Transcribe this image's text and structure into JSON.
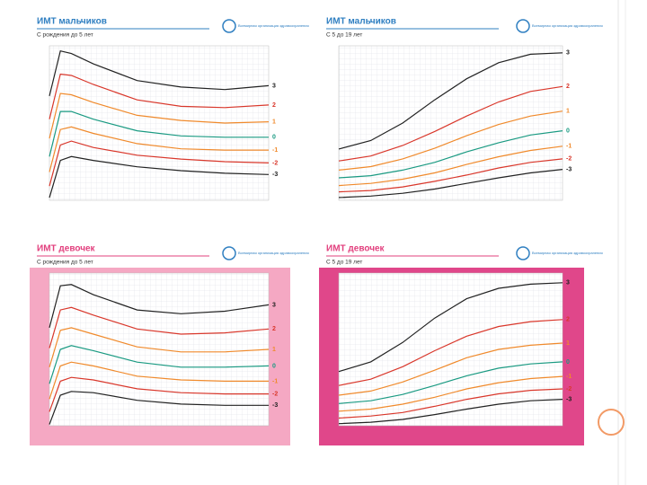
{
  "chart_data": [
    {
      "type": "line",
      "title": "ИМТ мальчиков",
      "subtitle": "С рождения до 5 лет",
      "org": "Всемирная организация здравоохранения",
      "title_color": "#2f7fc1",
      "background": "#ffffff",
      "x": [
        0,
        0.25,
        0.5,
        1,
        2,
        3,
        4,
        5
      ],
      "xlim": [
        0,
        5
      ],
      "ylim": [
        10,
        22
      ],
      "grid": true,
      "series": [
        {
          "name": "3",
          "color": "#222222",
          "values": [
            18.1,
            21.6,
            21.4,
            20.6,
            19.3,
            18.8,
            18.6,
            18.9
          ]
        },
        {
          "name": "2",
          "color": "#d9372b",
          "values": [
            16.3,
            19.8,
            19.7,
            19.0,
            17.8,
            17.3,
            17.2,
            17.4
          ]
        },
        {
          "name": "1",
          "color": "#f08a2c",
          "values": [
            14.8,
            18.3,
            18.2,
            17.6,
            16.6,
            16.2,
            16.0,
            16.1
          ]
        },
        {
          "name": "0",
          "color": "#1a9a82",
          "values": [
            13.4,
            16.9,
            16.9,
            16.3,
            15.4,
            15.0,
            14.9,
            14.9
          ]
        },
        {
          "name": "-1",
          "color": "#f08a2c",
          "values": [
            12.2,
            15.5,
            15.7,
            15.2,
            14.4,
            14.0,
            13.9,
            13.9
          ]
        },
        {
          "name": "-2",
          "color": "#d9372b",
          "values": [
            11.1,
            14.3,
            14.6,
            14.1,
            13.5,
            13.2,
            13.0,
            12.9
          ]
        },
        {
          "name": "-3",
          "color": "#222222",
          "values": [
            10.2,
            13.1,
            13.4,
            13.1,
            12.6,
            12.3,
            12.1,
            12.0
          ]
        }
      ]
    },
    {
      "type": "line",
      "title": "ИМТ мальчиков",
      "subtitle": "С 5 до 19 лет",
      "org": "Всемирная организация здравоохранения",
      "title_color": "#2f7fc1",
      "background": "#ffffff",
      "x": [
        5,
        7,
        9,
        11,
        13,
        15,
        17,
        19
      ],
      "xlim": [
        5,
        19
      ],
      "ylim": [
        12,
        34
      ],
      "grid": true,
      "series": [
        {
          "name": "3",
          "color": "#222222",
          "values": [
            19.3,
            20.5,
            23.0,
            26.3,
            29.3,
            31.6,
            32.8,
            33.0
          ]
        },
        {
          "name": "2",
          "color": "#d9372b",
          "values": [
            17.6,
            18.3,
            19.8,
            21.8,
            24.0,
            26.0,
            27.5,
            28.2
          ]
        },
        {
          "name": "1",
          "color": "#f08a2c",
          "values": [
            16.3,
            16.8,
            17.9,
            19.4,
            21.2,
            22.8,
            24.0,
            24.7
          ]
        },
        {
          "name": "0",
          "color": "#1a9a82",
          "values": [
            15.2,
            15.5,
            16.3,
            17.4,
            18.9,
            20.2,
            21.3,
            21.9
          ]
        },
        {
          "name": "-1",
          "color": "#f08a2c",
          "values": [
            14.1,
            14.4,
            15.0,
            15.9,
            17.1,
            18.2,
            19.1,
            19.7
          ]
        },
        {
          "name": "-2",
          "color": "#d9372b",
          "values": [
            13.2,
            13.4,
            13.9,
            14.7,
            15.6,
            16.6,
            17.4,
            17.9
          ]
        },
        {
          "name": "-3",
          "color": "#222222",
          "values": [
            12.4,
            12.6,
            13.0,
            13.6,
            14.4,
            15.2,
            15.9,
            16.4
          ]
        }
      ]
    },
    {
      "type": "line",
      "title": "ИМТ девочек",
      "subtitle": "С рождения до 5 лет",
      "org": "Всемирная организация здравоохранения",
      "title_color": "#e2407e",
      "background": "#f5a8c3",
      "x": [
        0,
        0.25,
        0.5,
        1,
        2,
        3,
        4,
        5
      ],
      "xlim": [
        0,
        5
      ],
      "ylim": [
        10,
        22
      ],
      "grid": true,
      "series": [
        {
          "name": "3",
          "color": "#222222",
          "values": [
            17.7,
            21.0,
            21.1,
            20.3,
            19.1,
            18.8,
            19.0,
            19.5
          ]
        },
        {
          "name": "2",
          "color": "#d9372b",
          "values": [
            16.1,
            19.1,
            19.3,
            18.7,
            17.6,
            17.2,
            17.3,
            17.6
          ]
        },
        {
          "name": "1",
          "color": "#f08a2c",
          "values": [
            14.6,
            17.5,
            17.7,
            17.2,
            16.2,
            15.8,
            15.8,
            16.0
          ]
        },
        {
          "name": "0",
          "color": "#1a9a82",
          "values": [
            13.3,
            16.0,
            16.3,
            15.9,
            15.0,
            14.6,
            14.6,
            14.7
          ]
        },
        {
          "name": "-1",
          "color": "#f08a2c",
          "values": [
            12.1,
            14.7,
            15.0,
            14.7,
            13.9,
            13.6,
            13.5,
            13.5
          ]
        },
        {
          "name": "-2",
          "color": "#d9372b",
          "values": [
            11.1,
            13.5,
            13.8,
            13.6,
            12.9,
            12.6,
            12.5,
            12.5
          ]
        },
        {
          "name": "-3",
          "color": "#222222",
          "values": [
            10.1,
            12.4,
            12.7,
            12.6,
            12.0,
            11.7,
            11.6,
            11.6
          ]
        }
      ]
    },
    {
      "type": "line",
      "title": "ИМТ девочек",
      "subtitle": "С 5 до 19 лет",
      "org": "Всемирная организация здравоохранения",
      "title_color": "#e2407e",
      "background": "#e0478a",
      "x": [
        5,
        7,
        9,
        11,
        13,
        15,
        17,
        19
      ],
      "xlim": [
        5,
        19
      ],
      "ylim": [
        12,
        34
      ],
      "grid": true,
      "series": [
        {
          "name": "3",
          "color": "#222222",
          "values": [
            19.8,
            21.2,
            24.0,
            27.5,
            30.3,
            31.8,
            32.4,
            32.6
          ]
        },
        {
          "name": "2",
          "color": "#d9372b",
          "values": [
            17.8,
            18.7,
            20.5,
            22.8,
            24.9,
            26.3,
            27.0,
            27.3
          ]
        },
        {
          "name": "1",
          "color": "#f08a2c",
          "values": [
            16.4,
            17.0,
            18.3,
            20.0,
            21.8,
            23.0,
            23.6,
            23.9
          ]
        },
        {
          "name": "0",
          "color": "#1a9a82",
          "values": [
            15.2,
            15.6,
            16.5,
            17.8,
            19.2,
            20.3,
            20.9,
            21.2
          ]
        },
        {
          "name": "-1",
          "color": "#f08a2c",
          "values": [
            14.1,
            14.4,
            15.1,
            16.1,
            17.3,
            18.2,
            18.8,
            19.1
          ]
        },
        {
          "name": "-2",
          "color": "#d9372b",
          "values": [
            13.1,
            13.4,
            13.9,
            14.8,
            15.8,
            16.6,
            17.1,
            17.3
          ]
        },
        {
          "name": "-3",
          "color": "#222222",
          "values": [
            12.3,
            12.5,
            12.9,
            13.6,
            14.4,
            15.1,
            15.6,
            15.8
          ]
        }
      ]
    }
  ]
}
